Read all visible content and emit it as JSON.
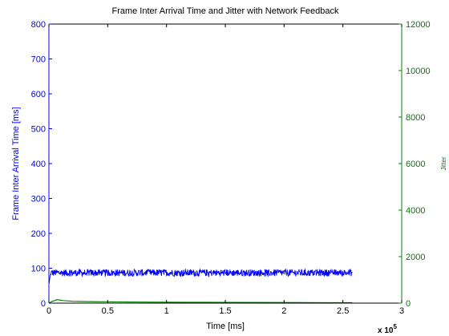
{
  "chart_data": {
    "type": "line",
    "title": "Frame Inter Arrival Time and Jitter with Network Feedback",
    "xlabel": "Time [ms]",
    "x_multiplier_label": "x 10",
    "x_multiplier_exponent": "5",
    "ylabel_left": "Frame Inter Arrival Time [ms]",
    "ylabel_right": "Jitter",
    "xlim": [
      0,
      3
    ],
    "ylim_left": [
      0,
      800
    ],
    "ylim_right": [
      0,
      12000
    ],
    "x_ticks": [
      "0",
      "0.5",
      "1",
      "1.5",
      "2",
      "2.5",
      "3"
    ],
    "y_left_ticks": [
      "0",
      "100",
      "200",
      "300",
      "400",
      "500",
      "600",
      "700",
      "800"
    ],
    "y_right_ticks": [
      "0",
      "2000",
      "4000",
      "6000",
      "8000",
      "10000",
      "12000"
    ],
    "colors": {
      "left_axis": "#0000ff",
      "right_axis": "#008000",
      "frame": "#000000"
    },
    "series": [
      {
        "axis": "left",
        "color": "#0000ff",
        "x_range": [
          0.0,
          2.58
        ],
        "y_start": 55,
        "y_mean": 87,
        "y_spread": 10,
        "x_units": "x 10^5 ms"
      },
      {
        "axis": "right",
        "color": "#008000",
        "x": [
          0.0,
          0.03,
          0.07,
          0.12,
          0.2,
          0.4,
          0.8,
          1.2,
          1.6,
          2.0,
          2.4,
          2.58
        ],
        "y": [
          0,
          80,
          150,
          110,
          80,
          60,
          45,
          35,
          30,
          25,
          20,
          18
        ]
      }
    ]
  }
}
